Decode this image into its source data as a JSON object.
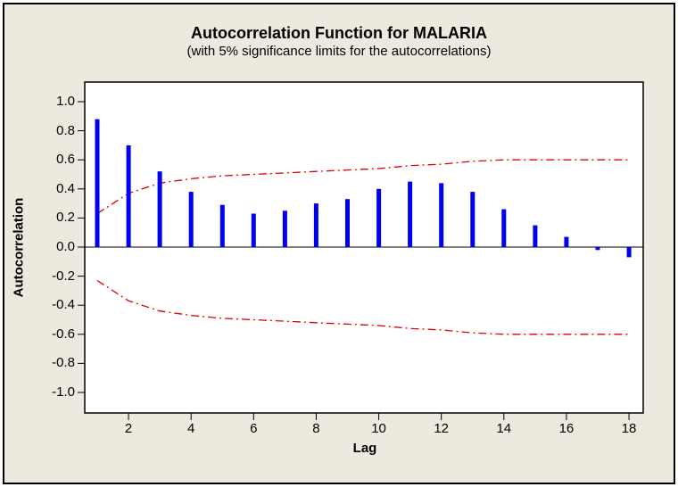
{
  "chart_data": {
    "type": "bar",
    "chart_kind": "autocorrelation-function",
    "title": "Autocorrelation Function for MALARIA",
    "subtitle": "(with 5% significance limits for the autocorrelations)",
    "xlabel": "Lag",
    "ylabel": "Autocorrelation",
    "x": [
      1,
      2,
      3,
      4,
      5,
      6,
      7,
      8,
      9,
      10,
      11,
      12,
      13,
      14,
      15,
      16,
      17,
      18
    ],
    "acf_values": [
      0.88,
      0.7,
      0.52,
      0.38,
      0.29,
      0.23,
      0.25,
      0.3,
      0.33,
      0.4,
      0.45,
      0.44,
      0.38,
      0.26,
      0.15,
      0.07,
      -0.02,
      -0.07
    ],
    "significance_limit_upper": [
      0.23,
      0.37,
      0.44,
      0.47,
      0.49,
      0.5,
      0.51,
      0.52,
      0.53,
      0.54,
      0.56,
      0.57,
      0.59,
      0.6,
      0.6,
      0.6,
      0.6,
      0.6
    ],
    "significance_limit_lower": [
      -0.23,
      -0.37,
      -0.44,
      -0.47,
      -0.49,
      -0.5,
      -0.51,
      -0.52,
      -0.53,
      -0.54,
      -0.56,
      -0.57,
      -0.59,
      -0.6,
      -0.6,
      -0.6,
      -0.6,
      -0.6
    ],
    "x_ticks": [
      "2",
      "4",
      "6",
      "8",
      "10",
      "12",
      "14",
      "16",
      "18"
    ],
    "y_ticks": [
      "1.0",
      "0.8",
      "0.6",
      "0.4",
      "0.2",
      "0.0",
      "-0.2",
      "-0.4",
      "-0.6",
      "-0.8",
      "-1.0"
    ],
    "xlim": [
      0.6,
      18.5
    ],
    "ylim": [
      -1.14,
      1.14
    ],
    "grid": "off",
    "legend": "none",
    "line_style": "dash-dot",
    "colors": {
      "bar": "#0000ee",
      "significance_line": "#e00000",
      "frame_background": "#ede9de",
      "plot_background": "#ffffff",
      "axis": "#000000"
    }
  }
}
